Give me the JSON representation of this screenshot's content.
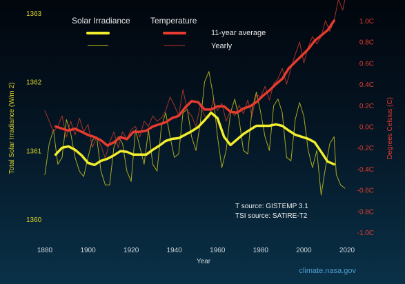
{
  "chart_data": {
    "type": "line",
    "title": "",
    "xlabel": "Year",
    "ylabel_left": "Total Solar Irradiance (W/m 2)",
    "ylabel_right": "Degrees Celsius (C)",
    "xlim": [
      1880,
      2020
    ],
    "ylim_left": [
      1360,
      1363
    ],
    "ylim_right": [
      -1.0,
      1.0
    ],
    "x_ticks": [
      "1880",
      "1900",
      "1920",
      "1940",
      "1960",
      "1980",
      "2000",
      "2020"
    ],
    "y_left_ticks": [
      "1360",
      "1361",
      "1362",
      "1363"
    ],
    "y_right_ticks": [
      "-1.0C",
      "-0.8C",
      "-0.6C",
      "-0.4C",
      "-0.2C",
      "0.0C",
      "0.2C",
      "0.4C",
      "0.6C",
      "0.8C",
      "1.0C"
    ],
    "grid": false,
    "legend": {
      "placement": "top",
      "group_solar": "Solar Irradiance",
      "group_temp": "Temperature",
      "row_avg": "11-year average",
      "row_yearly": "Yearly"
    },
    "source_lines": [
      "T source: GISTEMP 3.1",
      "TSI source: SATIRE-T2"
    ],
    "credit": "climate.nasa.gov",
    "colors": {
      "solar": "#f2ee2e",
      "temperature": "#e63b2e",
      "left_axis": "#d8d02a",
      "right_axis": "#e63b2e"
    },
    "series": [
      {
        "name": "Solar Irradiance 11-year average",
        "axis": "left",
        "style": "thick",
        "x": [
          1885,
          1888,
          1891,
          1894,
          1897,
          1900,
          1903,
          1906,
          1909,
          1912,
          1915,
          1918,
          1921,
          1924,
          1927,
          1930,
          1933,
          1936,
          1939,
          1942,
          1945,
          1948,
          1951,
          1954,
          1957,
          1960,
          1963,
          1966,
          1969,
          1972,
          1975,
          1978,
          1981,
          1984,
          1987,
          1990,
          1993,
          1996,
          1999,
          2002,
          2005,
          2008,
          2011,
          2014
        ],
        "y": [
          1360.94,
          1361.04,
          1361.06,
          1361.01,
          1360.93,
          1360.82,
          1360.79,
          1360.85,
          1360.88,
          1360.93,
          1360.99,
          1360.98,
          1360.94,
          1360.94,
          1360.94,
          1361.01,
          1361.07,
          1361.14,
          1361.17,
          1361.18,
          1361.23,
          1361.28,
          1361.34,
          1361.44,
          1361.55,
          1361.47,
          1361.2,
          1361.08,
          1361.16,
          1361.24,
          1361.3,
          1361.36,
          1361.36,
          1361.36,
          1361.38,
          1361.36,
          1361.29,
          1361.23,
          1361.2,
          1361.17,
          1361.12,
          1360.98,
          1360.84,
          1360.8
        ]
      },
      {
        "name": "Solar Irradiance yearly",
        "axis": "left",
        "style": "thin",
        "x": [
          1880,
          1882,
          1884,
          1886,
          1888,
          1890,
          1892,
          1894,
          1896,
          1898,
          1900,
          1902,
          1904,
          1906,
          1908,
          1910,
          1912,
          1914,
          1916,
          1918,
          1920,
          1922,
          1924,
          1926,
          1928,
          1930,
          1932,
          1934,
          1936,
          1938,
          1940,
          1942,
          1944,
          1946,
          1948,
          1950,
          1952,
          1954,
          1956,
          1958,
          1960,
          1962,
          1964,
          1966,
          1968,
          1970,
          1972,
          1974,
          1976,
          1978,
          1980,
          1982,
          1984,
          1986,
          1988,
          1990,
          1992,
          1994,
          1996,
          1998,
          2000,
          2002,
          2004,
          2006,
          2008,
          2010,
          2012,
          2014,
          2015,
          2017,
          2019
        ],
        "y": [
          1360.65,
          1361.1,
          1361.3,
          1360.8,
          1360.9,
          1361.45,
          1361.25,
          1360.9,
          1360.7,
          1360.62,
          1360.9,
          1361.15,
          1361.2,
          1360.7,
          1360.5,
          1360.5,
          1361.05,
          1361.2,
          1361.1,
          1360.7,
          1360.55,
          1361.3,
          1361.05,
          1360.8,
          1361.3,
          1360.8,
          1360.7,
          1361.35,
          1361.55,
          1361.2,
          1360.9,
          1360.95,
          1361.55,
          1361.6,
          1361.2,
          1361.0,
          1361.4,
          1362.0,
          1362.15,
          1361.8,
          1361.2,
          1360.75,
          1361.0,
          1361.55,
          1361.75,
          1361.45,
          1361.0,
          1360.95,
          1361.6,
          1361.85,
          1361.55,
          1361.2,
          1361.0,
          1361.65,
          1361.75,
          1361.55,
          1360.9,
          1360.85,
          1361.45,
          1361.7,
          1361.5,
          1361.0,
          1360.75,
          1361.0,
          1360.35,
          1360.75,
          1361.1,
          1361.2,
          1360.65,
          1360.5,
          1360.45
        ]
      },
      {
        "name": "Temperature 11-year average",
        "axis": "right",
        "style": "thick",
        "x": [
          1885,
          1888,
          1891,
          1894,
          1897,
          1900,
          1903,
          1906,
          1909,
          1912,
          1915,
          1918,
          1921,
          1924,
          1927,
          1930,
          1933,
          1936,
          1939,
          1942,
          1945,
          1948,
          1951,
          1954,
          1957,
          1960,
          1963,
          1966,
          1969,
          1972,
          1975,
          1978,
          1981,
          1984,
          1987,
          1990,
          1993,
          1996,
          1999,
          2002,
          2005,
          2008,
          2011,
          2014
        ],
        "y": [
          0.0,
          -0.02,
          -0.04,
          -0.02,
          -0.05,
          -0.08,
          -0.1,
          -0.13,
          -0.18,
          -0.15,
          -0.1,
          -0.12,
          -0.05,
          -0.05,
          -0.04,
          0.0,
          0.02,
          0.04,
          0.08,
          0.1,
          0.18,
          0.24,
          0.23,
          0.16,
          0.16,
          0.19,
          0.19,
          0.14,
          0.13,
          0.17,
          0.19,
          0.23,
          0.29,
          0.34,
          0.4,
          0.45,
          0.55,
          0.61,
          0.67,
          0.73,
          0.81,
          0.86,
          0.91,
          1.0
        ]
      },
      {
        "name": "Temperature yearly",
        "axis": "right",
        "style": "thin",
        "x": [
          1880,
          1882,
          1884,
          1886,
          1888,
          1890,
          1892,
          1894,
          1896,
          1898,
          1900,
          1902,
          1904,
          1906,
          1908,
          1910,
          1912,
          1914,
          1916,
          1918,
          1920,
          1922,
          1924,
          1926,
          1928,
          1930,
          1932,
          1934,
          1936,
          1938,
          1940,
          1942,
          1944,
          1946,
          1948,
          1950,
          1952,
          1954,
          1956,
          1958,
          1960,
          1962,
          1964,
          1966,
          1968,
          1970,
          1972,
          1974,
          1976,
          1978,
          1980,
          1982,
          1984,
          1986,
          1988,
          1990,
          1992,
          1994,
          1996,
          1998,
          2000,
          2002,
          2004,
          2006,
          2008,
          2010,
          2012,
          2014,
          2016,
          2018,
          2019
        ],
        "y": [
          0.15,
          0.05,
          -0.05,
          0.0,
          0.1,
          -0.1,
          0.05,
          -0.08,
          0.08,
          -0.05,
          0.02,
          -0.2,
          -0.1,
          -0.18,
          -0.3,
          -0.15,
          -0.05,
          -0.2,
          -0.05,
          -0.12,
          -0.03,
          0.0,
          -0.1,
          0.05,
          0.0,
          0.1,
          0.05,
          0.08,
          0.15,
          0.28,
          0.2,
          0.1,
          0.35,
          0.15,
          0.1,
          0.0,
          0.2,
          0.1,
          0.08,
          0.25,
          0.15,
          0.22,
          0.05,
          0.15,
          0.1,
          0.2,
          0.12,
          0.25,
          0.1,
          0.3,
          0.28,
          0.38,
          0.25,
          0.4,
          0.45,
          0.55,
          0.4,
          0.55,
          0.68,
          0.8,
          0.6,
          0.75,
          0.85,
          0.78,
          0.85,
          1.0,
          0.9,
          1.0,
          1.2,
          1.1,
          1.2
        ]
      }
    ]
  }
}
